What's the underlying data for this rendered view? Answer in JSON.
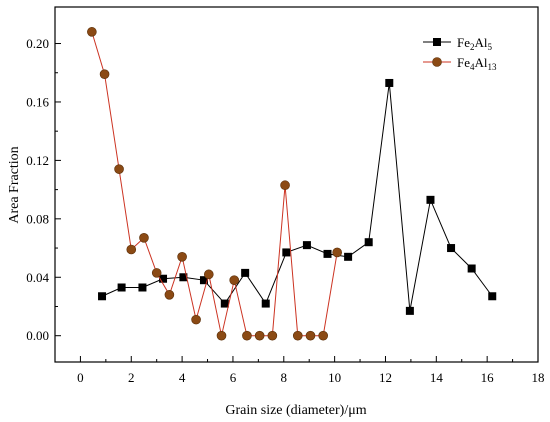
{
  "chart_data": {
    "type": "line",
    "title": "",
    "xlabel": "Grain size (diameter)/μm",
    "ylabel": "Area Fraction",
    "xlim": [
      -1,
      18
    ],
    "ylim": [
      -0.018,
      0.225
    ],
    "xticks": [
      0,
      2,
      4,
      6,
      8,
      10,
      12,
      14,
      16,
      18
    ],
    "yticks": [
      0.0,
      0.04,
      0.08,
      0.12,
      0.16,
      0.2
    ],
    "ytick_labels": [
      "0.00",
      "0.04",
      "0.08",
      "0.12",
      "0.16",
      "0.20"
    ],
    "grid": false,
    "legend_position": "top-right",
    "series": [
      {
        "legend_base": "Fe",
        "legend_sub1": "2",
        "legend_mid": "Al",
        "legend_sub2": "5",
        "marker": "square",
        "line_color": "#000000",
        "marker_color": "#000000",
        "x": [
          0.85,
          1.62,
          2.44,
          3.25,
          4.05,
          4.86,
          5.68,
          6.48,
          7.29,
          8.1,
          8.91,
          9.72,
          10.53,
          11.34,
          12.15,
          12.96,
          13.77,
          14.58,
          15.39,
          16.2
        ],
        "y": [
          0.027,
          0.033,
          0.033,
          0.039,
          0.04,
          0.038,
          0.022,
          0.043,
          0.022,
          0.057,
          0.062,
          0.056,
          0.054,
          0.064,
          0.173,
          0.017,
          0.093,
          0.06,
          0.046,
          0.027
        ]
      },
      {
        "legend_base": "Fe",
        "legend_sub1": "4",
        "legend_mid": "Al",
        "legend_sub2": "13",
        "marker": "circle",
        "line_color": "#cc3322",
        "marker_color": "#8b4a14",
        "x": [
          0.45,
          0.95,
          1.52,
          2.0,
          2.5,
          3.0,
          3.5,
          4.0,
          4.55,
          5.05,
          5.55,
          6.05,
          6.55,
          7.05,
          7.55,
          8.05,
          8.55,
          9.05,
          9.55,
          10.1
        ],
        "y": [
          0.208,
          0.179,
          0.114,
          0.059,
          0.067,
          0.043,
          0.028,
          0.054,
          0.011,
          0.042,
          0.0,
          0.038,
          0.0,
          0.0,
          0.0,
          0.103,
          0.0,
          0.0,
          0.0,
          0.057
        ]
      }
    ]
  }
}
